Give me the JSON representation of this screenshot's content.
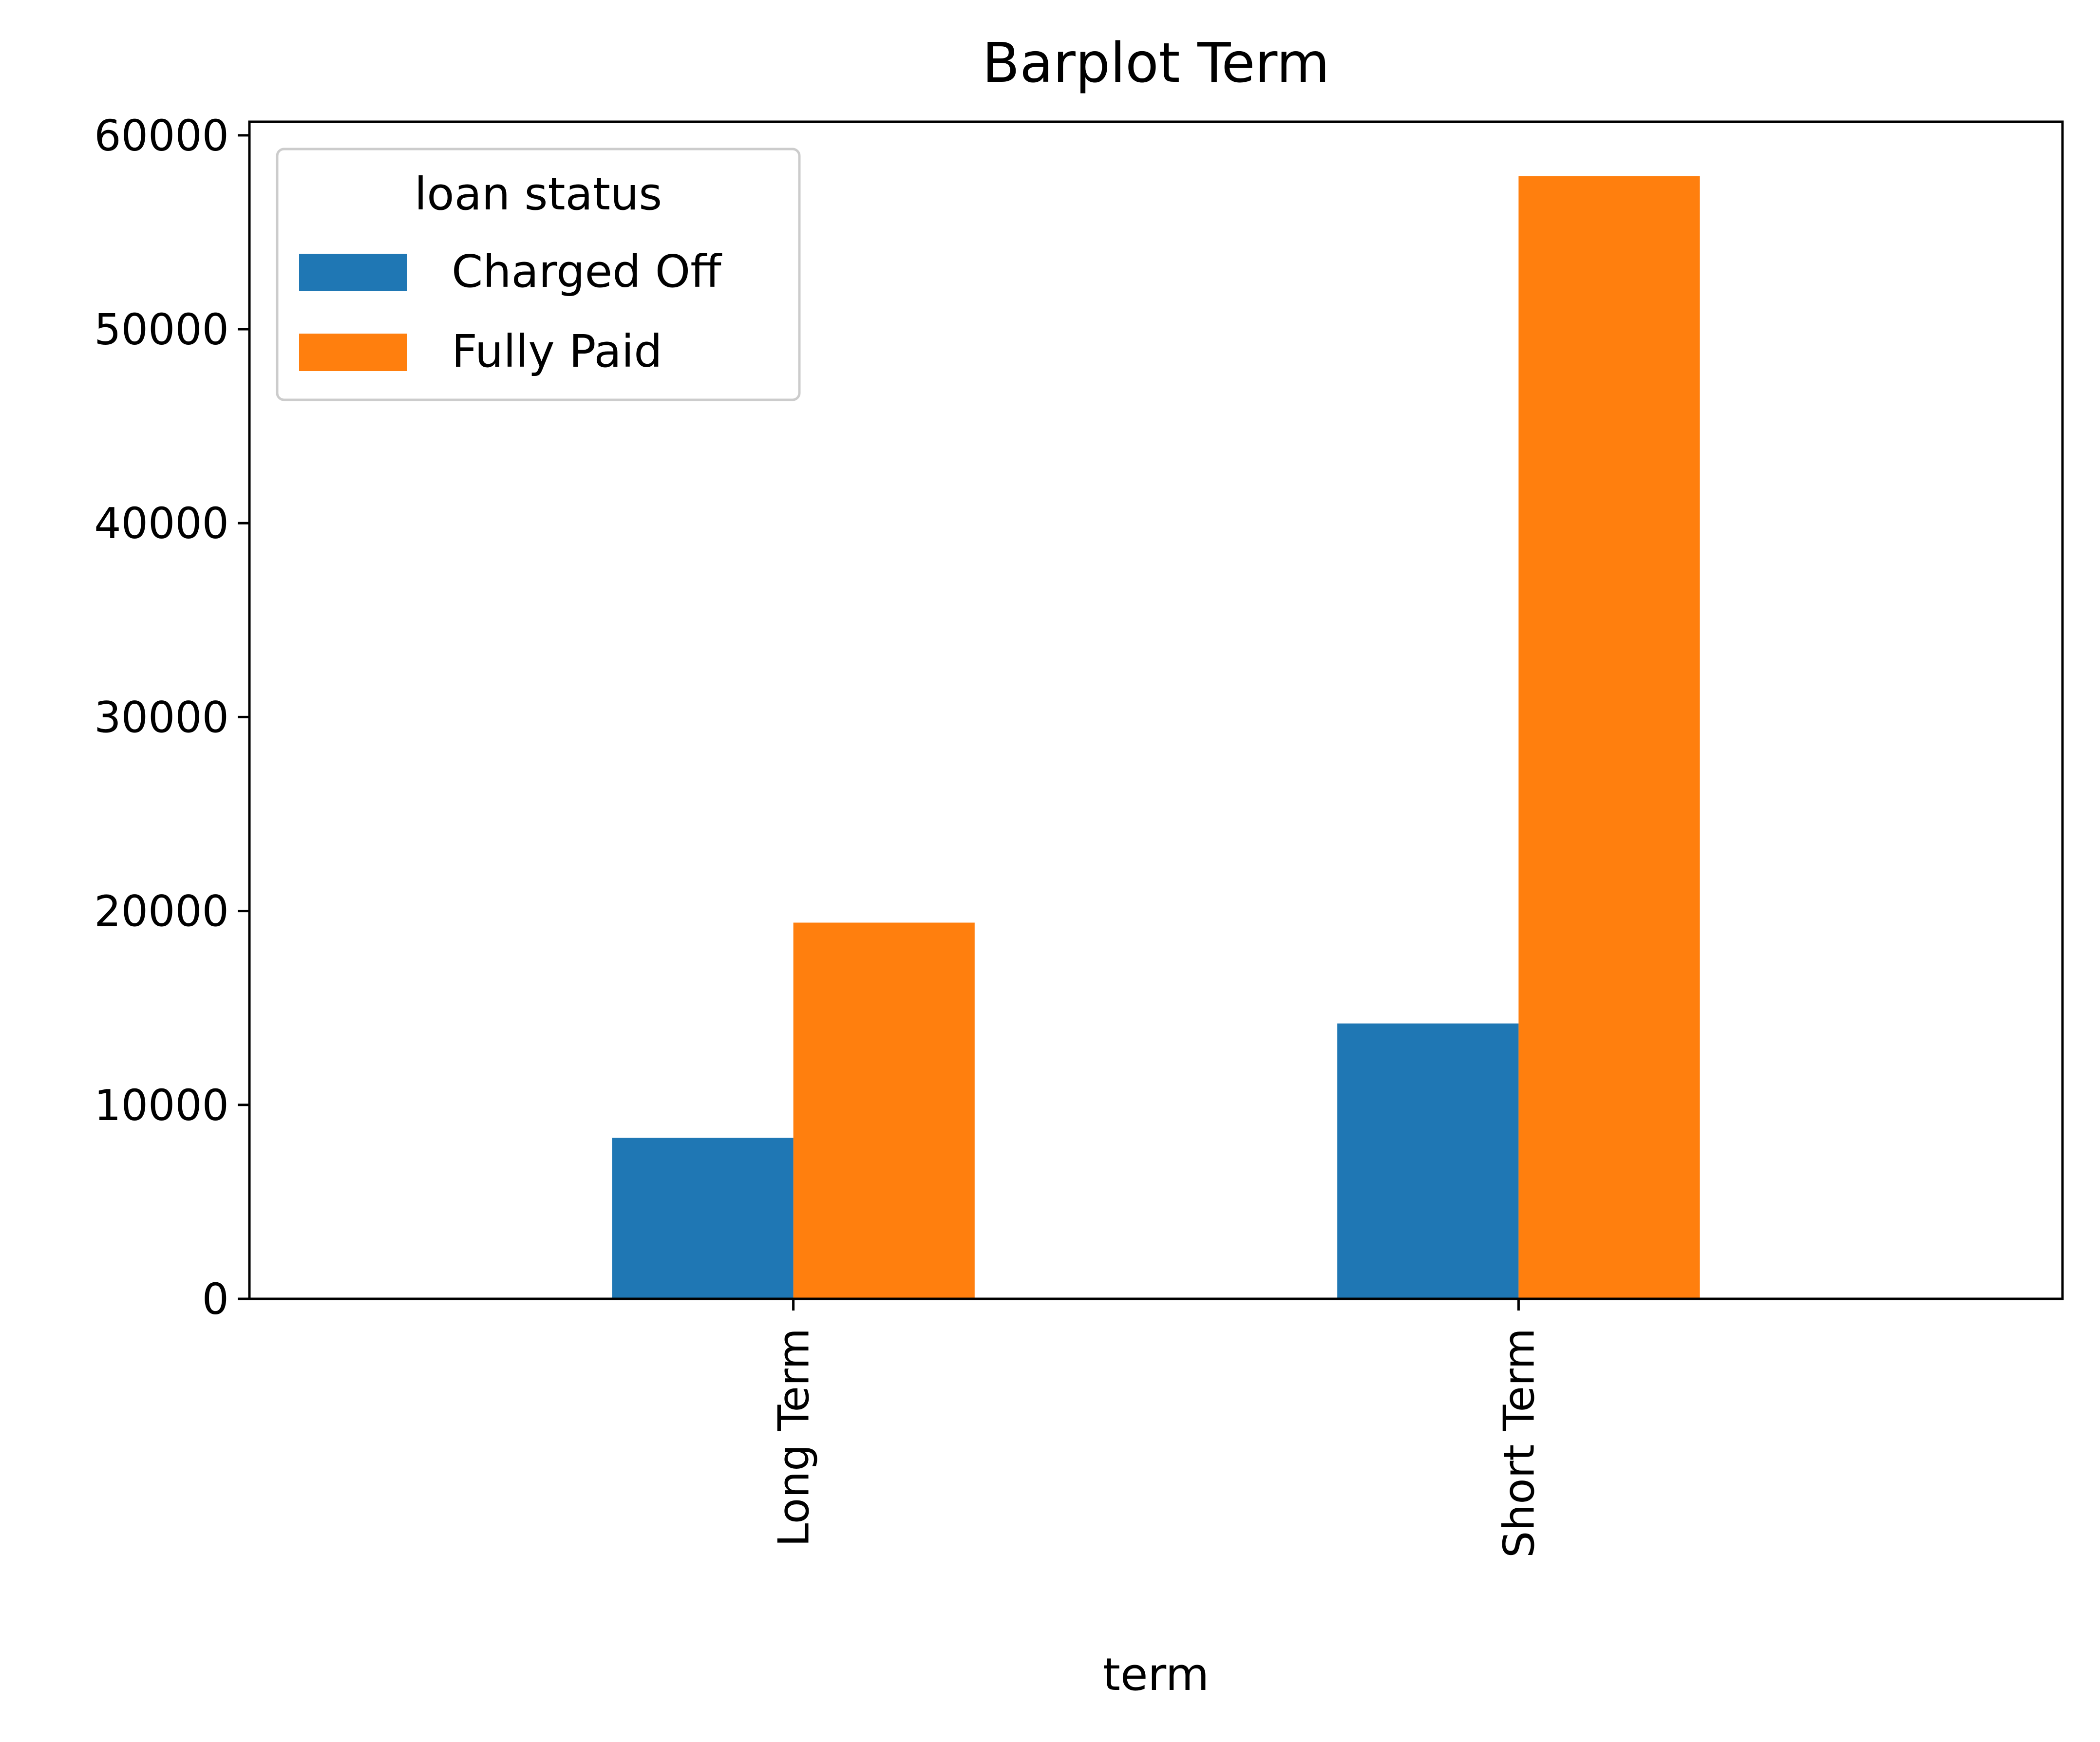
{
  "chart_data": {
    "type": "bar",
    "title": "Barplot Term",
    "xlabel": "term",
    "ylabel": "",
    "categories": [
      "Long Term",
      "Short Term"
    ],
    "series": [
      {
        "name": "Charged Off",
        "values": [
          8300,
          14200
        ],
        "color": "#1f77b4"
      },
      {
        "name": "Fully Paid",
        "values": [
          19400,
          57900
        ],
        "color": "#ff7f0e"
      }
    ],
    "ylim": [
      0,
      60700
    ],
    "yticks": [
      0,
      10000,
      20000,
      30000,
      40000,
      50000,
      60000
    ],
    "yticks_labels": [
      "0",
      "10000",
      "20000",
      "30000",
      "40000",
      "50000",
      "60000"
    ],
    "grid": false,
    "legend": {
      "title": "loan status",
      "placement": "top-left"
    }
  }
}
